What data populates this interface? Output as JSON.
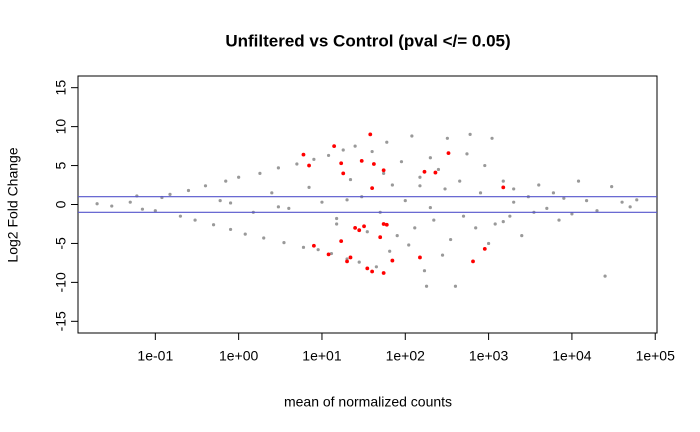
{
  "chart_data": {
    "type": "scatter",
    "title": "Unfiltered vs Control (pval </= 0.05)",
    "x_label": "mean of normalized counts",
    "y_label": "Log2 Fold Change",
    "x_log": true,
    "xlim": [
      0.0118,
      105000
    ],
    "ylim": [
      -16.5,
      16.5
    ],
    "xticks": [
      {
        "value": 0.1,
        "label": "1e-01"
      },
      {
        "value": 1,
        "label": "1e+00"
      },
      {
        "value": 10,
        "label": "1e+01"
      },
      {
        "value": 100,
        "label": "1e+02"
      },
      {
        "value": 1000,
        "label": "1e+03"
      },
      {
        "value": 10000,
        "label": "1e+04"
      },
      {
        "value": 100000,
        "label": "1e+05"
      }
    ],
    "yticks": [
      -15,
      -10,
      -5,
      0,
      5,
      10,
      15
    ],
    "hlines": [
      1,
      -1
    ],
    "hline_color": "#5555cc",
    "series": [
      {
        "color": "#999999",
        "x": [
          0.02,
          0.03,
          0.05,
          0.06,
          0.07,
          0.1,
          0.12,
          0.15,
          0.2,
          0.25,
          0.3,
          0.4,
          0.5,
          0.6,
          0.7,
          0.8,
          1,
          1.2,
          1.5,
          1.8,
          2,
          2.5,
          3,
          3.5,
          4,
          5,
          6,
          7,
          8,
          9,
          10,
          12,
          13,
          15,
          18,
          20,
          22,
          25,
          28,
          30,
          35,
          40,
          45,
          50,
          55,
          60,
          65,
          70,
          80,
          90,
          100,
          110,
          120,
          130,
          150,
          170,
          180,
          200,
          220,
          250,
          280,
          300,
          320,
          350,
          400,
          450,
          500,
          550,
          600,
          700,
          800,
          900,
          1000,
          1100,
          1200,
          1500,
          1800,
          2000,
          2500,
          3000,
          3500,
          4000,
          5000,
          6000,
          7000,
          8000,
          10000,
          12000,
          15000,
          20000,
          25000,
          30000,
          40000,
          50000,
          60000,
          0.8,
          3,
          20,
          200,
          2000,
          15,
          150,
          1500
        ],
        "values": [
          0.1,
          -0.2,
          0.3,
          1.1,
          -0.6,
          -0.8,
          0.9,
          1.3,
          -1.5,
          1.8,
          -2.0,
          2.4,
          -2.6,
          0.5,
          3.0,
          -3.2,
          3.5,
          -3.8,
          -1,
          4.0,
          -4.3,
          1.5,
          4.7,
          -4.9,
          -0.5,
          5.2,
          -5.5,
          2.2,
          5.8,
          -5.8,
          0.3,
          6.3,
          -6.3,
          -2.5,
          7.0,
          -7.0,
          3.2,
          7.5,
          -7.4,
          1.0,
          -3.5,
          6.8,
          -8.0,
          -1.0,
          4.0,
          8.0,
          -6.0,
          2.5,
          -4.0,
          5.5,
          0.5,
          -5.2,
          8.8,
          -3.0,
          3.5,
          -8.5,
          -10.5,
          6.0,
          -2.0,
          4.5,
          -6.5,
          2.0,
          8.5,
          -4.5,
          -10.5,
          3.0,
          -1.5,
          6.5,
          9.0,
          -3.0,
          1.5,
          5.0,
          -5.0,
          8.5,
          -2.5,
          3.0,
          -1.5,
          2.0,
          -4.0,
          1.0,
          -1.0,
          2.5,
          -0.5,
          1.5,
          -2.0,
          0.8,
          -1.2,
          3.0,
          0.5,
          -0.8,
          -9.2,
          2.3,
          0.3,
          -0.3,
          0.6,
          0.2,
          -0.3,
          0.6,
          -0.4,
          0.3,
          -1.8,
          2.4,
          -2.2
        ]
      },
      {
        "color": "#ff0000",
        "x": [
          6,
          7,
          14,
          17,
          18,
          30,
          38,
          40,
          42,
          55,
          170,
          230,
          330,
          1500,
          8,
          12,
          17,
          20,
          22,
          25,
          28,
          32,
          35,
          40,
          50,
          55,
          55,
          60,
          70,
          150,
          650,
          900
        ],
        "values": [
          6.4,
          5.0,
          7.5,
          5.3,
          4.0,
          5.6,
          9.0,
          2.1,
          5.2,
          4.4,
          4.2,
          4.1,
          6.6,
          2.2,
          -5.3,
          -6.4,
          -4.7,
          -7.3,
          -6.8,
          -3.0,
          -3.3,
          -2.8,
          -8.2,
          -8.6,
          -4.2,
          -8.8,
          -2.5,
          -2.6,
          -7.2,
          -6.8,
          -7.3,
          -5.7
        ]
      }
    ]
  }
}
